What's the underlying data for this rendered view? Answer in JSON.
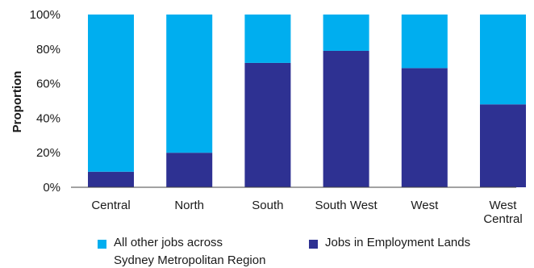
{
  "chart_data": {
    "type": "bar",
    "stacked": true,
    "ylabel": "Proportion",
    "xlabel": "",
    "ylim": [
      0,
      100
    ],
    "yticks": [
      "0%",
      "20%",
      "40%",
      "60%",
      "80%",
      "100%"
    ],
    "categories": [
      "Central",
      "North",
      "South",
      "South West",
      "West",
      "West Central"
    ],
    "category_lines": [
      [
        "Central"
      ],
      [
        "North"
      ],
      [
        "South"
      ],
      [
        "South West"
      ],
      [
        "West"
      ],
      [
        "West",
        "Central"
      ]
    ],
    "series": [
      {
        "name": "Jobs in Employment Lands",
        "color": "#2e3192",
        "values": [
          9,
          20,
          72,
          79,
          69,
          48
        ]
      },
      {
        "name": "All other jobs across Sydney Metropolitan Region",
        "color": "#00aeef",
        "values": [
          91,
          80,
          28,
          21,
          31,
          52
        ]
      }
    ],
    "grid": "none",
    "legend_position": "bottom"
  },
  "legend": {
    "other_line1": "All other jobs across",
    "other_line2": "Sydney Metropolitan Region",
    "employment": "Jobs in Employment Lands"
  }
}
